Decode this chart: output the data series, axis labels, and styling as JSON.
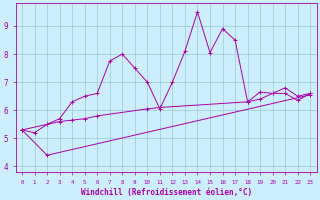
{
  "xlabel": "Windchill (Refroidissement éolien,°C)",
  "background_color": "#cceeff",
  "line_color": "#aa00aa",
  "grid_color": "#99cccc",
  "line1_x": [
    0,
    1,
    2,
    3,
    4,
    5,
    6,
    7,
    8,
    9,
    10,
    11,
    12,
    13,
    14,
    15,
    16,
    17,
    18,
    19,
    20,
    21,
    22,
    23
  ],
  "line1_y": [
    5.3,
    5.2,
    5.5,
    5.7,
    6.3,
    6.5,
    6.6,
    7.75,
    8.0,
    7.5,
    7.0,
    6.05,
    7.0,
    8.1,
    9.5,
    8.05,
    8.9,
    8.5,
    6.3,
    6.65,
    6.6,
    6.8,
    6.5,
    6.6
  ],
  "line2_x": [
    0,
    3,
    4,
    5,
    6,
    10,
    11,
    18,
    19,
    20,
    21,
    22,
    23
  ],
  "line2_y": [
    5.3,
    5.6,
    5.65,
    5.7,
    5.8,
    6.05,
    6.1,
    6.3,
    6.4,
    6.6,
    6.6,
    6.35,
    6.6
  ],
  "line3_x": [
    0,
    2,
    23
  ],
  "line3_y": [
    5.3,
    4.4,
    6.55
  ],
  "ylim": [
    3.8,
    9.8
  ],
  "xlim": [
    -0.5,
    23.5
  ],
  "yticks": [
    4,
    5,
    6,
    7,
    8,
    9
  ],
  "xticks": [
    0,
    1,
    2,
    3,
    4,
    5,
    6,
    7,
    8,
    9,
    10,
    11,
    12,
    13,
    14,
    15,
    16,
    17,
    18,
    19,
    20,
    21,
    22,
    23
  ]
}
